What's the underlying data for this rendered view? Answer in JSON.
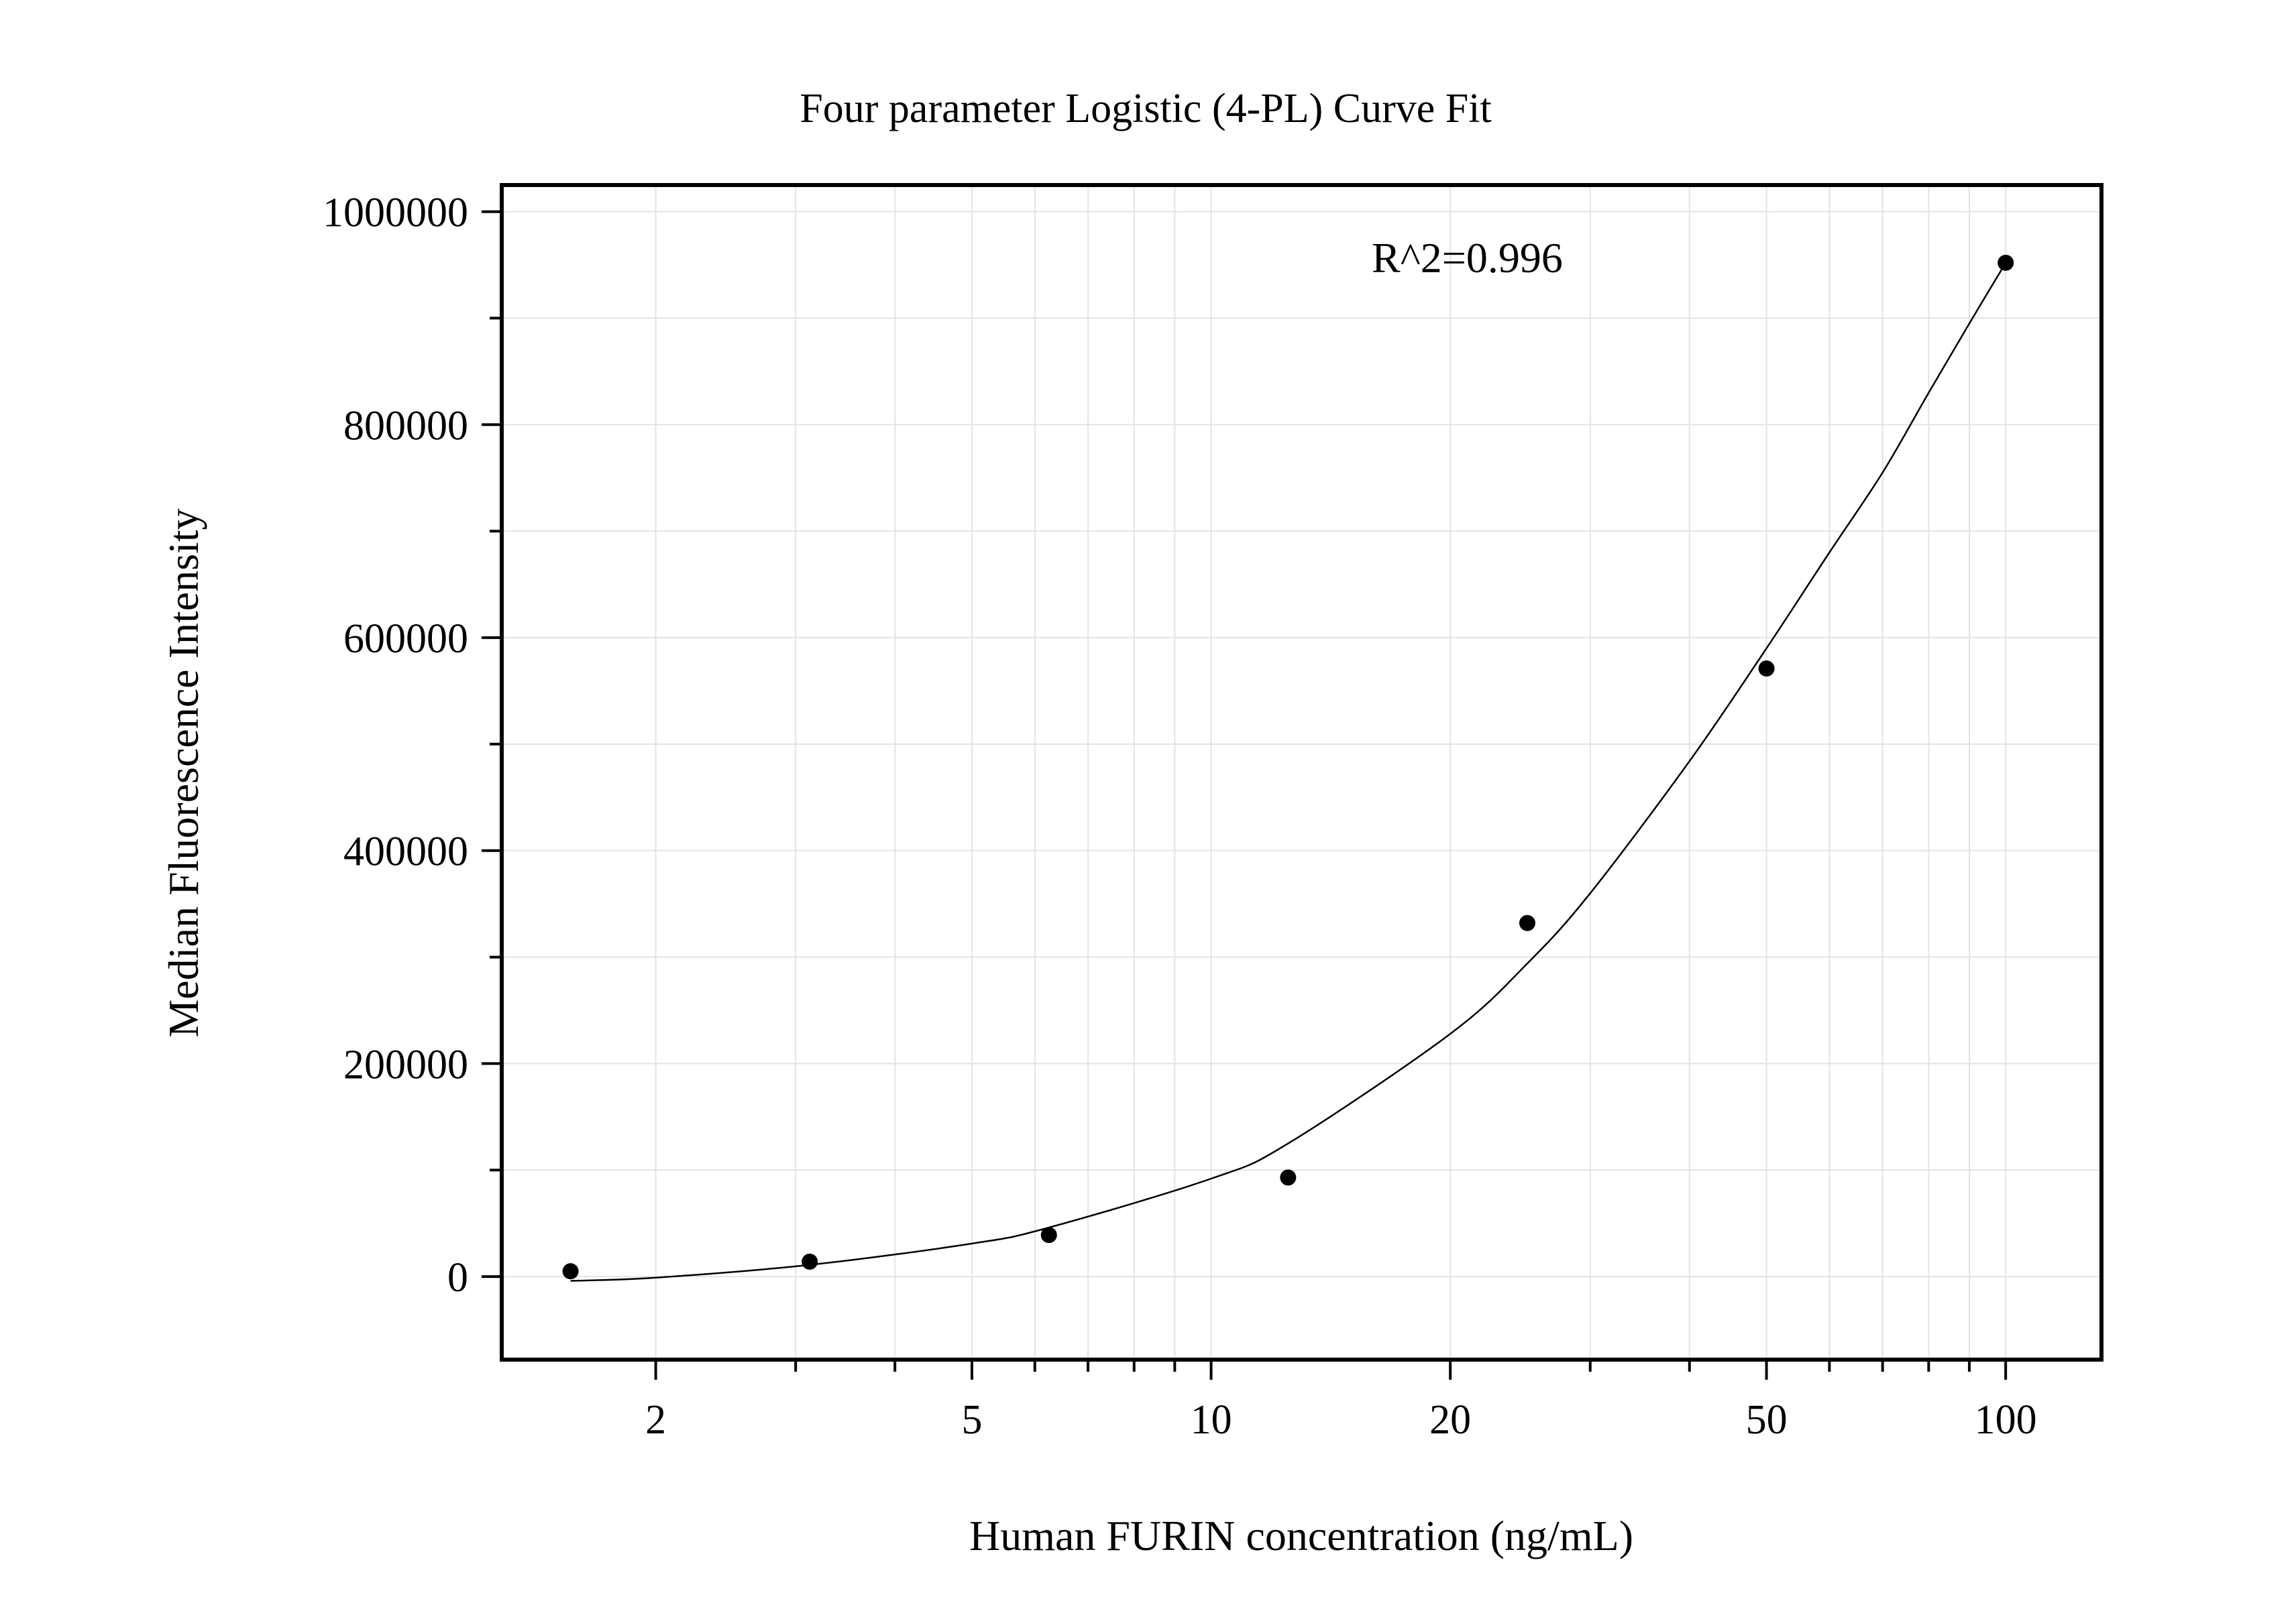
{
  "chart_data": {
    "type": "scatter",
    "title": "Four parameter Logistic (4-PL) Curve Fit",
    "xlabel": "Human FURIN concentration (ng/mL)",
    "ylabel": "Median Fluorescence Intensity",
    "x_scale": "log",
    "xlim": [
      1.28,
      132
    ],
    "ylim": [
      -78000,
      1025000
    ],
    "x_ticks": [
      2,
      5,
      10,
      20,
      50,
      100
    ],
    "x_tick_labels": [
      "2",
      "5",
      "10",
      "20",
      "50",
      "100"
    ],
    "y_ticks": [
      0,
      200000,
      400000,
      600000,
      800000,
      1000000
    ],
    "y_tick_labels": [
      "0",
      "200000",
      "400000",
      "600000",
      "800000",
      "1000000"
    ],
    "grid": true,
    "annotation": "R^2=0.996",
    "series": [
      {
        "type": "scatter",
        "x": [
          1.5625,
          3.125,
          6.25,
          12.5,
          25,
          50,
          100
        ],
        "y": [
          5000,
          14000,
          39000,
          93000,
          332000,
          571000,
          952000
        ]
      },
      {
        "type": "line",
        "x": [
          1.5625,
          2,
          3.125,
          5,
          6.25,
          10,
          12.5,
          20,
          25,
          30,
          40,
          50,
          60,
          70,
          80,
          90,
          100
        ],
        "y": [
          -4000,
          -1000,
          11000,
          31000,
          46000,
          92000,
          125000,
          228000,
          294000,
          360000,
          484000,
          590000,
          680000,
          755000,
          830000,
          895000,
          952000
        ]
      }
    ]
  }
}
